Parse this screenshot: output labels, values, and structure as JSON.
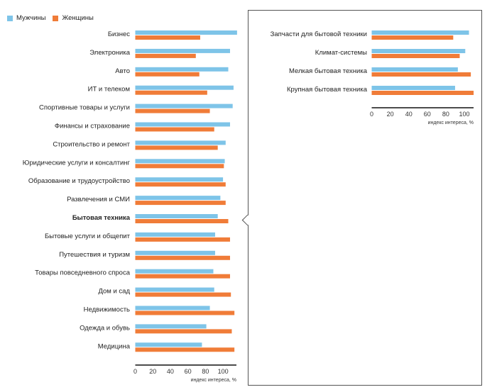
{
  "legend": {
    "men": "Мужчины",
    "women": "Женщины"
  },
  "colors": {
    "men": "#7ec4e8",
    "women": "#f07c38"
  },
  "chart_data": [
    {
      "type": "bar",
      "orientation": "horizontal",
      "xlabel": "индекс интереса, %",
      "xlim": [
        0,
        115
      ],
      "ticks": [
        0,
        20,
        40,
        60,
        80,
        100
      ],
      "highlighted": "Бытовая техника",
      "categories": [
        "Бизнес",
        "Электроника",
        "Авто",
        "ИТ и телеком",
        "Спортивные товары и услуги",
        "Финансы и страхование",
        "Строительство и ремонт",
        "Юридические услуги и консалтинг",
        "Образование и трудоустройство",
        "Развлечения и СМИ",
        "Бытовая техника",
        "Бытовые услуги и общепит",
        "Путешествия и туризм",
        "Товары повседневного спроса",
        "Дом и сад",
        "Недвижимость",
        "Одежда и обувь",
        "Медицина"
      ],
      "series": [
        {
          "name": "Мужчины",
          "values": [
            116,
            108,
            106,
            112,
            111,
            108,
            103,
            102,
            100,
            97,
            94,
            91,
            91,
            89,
            90,
            85,
            81,
            76
          ]
        },
        {
          "name": "Женщины",
          "values": [
            74,
            69,
            73,
            82,
            85,
            90,
            94,
            101,
            103,
            103,
            106,
            108,
            108,
            108,
            109,
            113,
            110,
            113
          ]
        }
      ]
    },
    {
      "type": "bar",
      "orientation": "horizontal",
      "xlabel": "индекс интереса, %",
      "xlim": [
        0,
        110
      ],
      "ticks": [
        0,
        20,
        40,
        60,
        80,
        100
      ],
      "categories": [
        "Запчасти для бытовой техники",
        "Климат-системы",
        "Мелкая бытовая техника",
        "Крупная бытовая техника"
      ],
      "series": [
        {
          "name": "Мужчины",
          "values": [
            105,
            101,
            93,
            90
          ]
        },
        {
          "name": "Женщины",
          "values": [
            88,
            95,
            107,
            110
          ]
        }
      ]
    }
  ]
}
